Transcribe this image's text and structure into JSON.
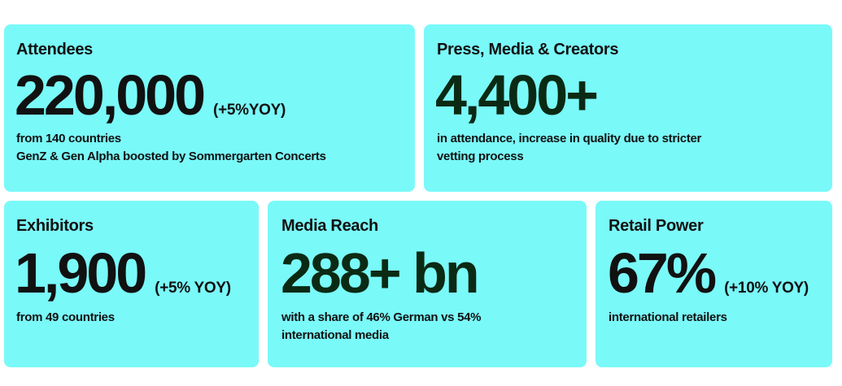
{
  "cards": {
    "attendees": {
      "title": "Attendees",
      "value": "220,000",
      "change": "(+5%YOY)",
      "desc_line1": "from 140 countries",
      "desc_line2": "GenZ & Gen Alpha boosted by Sommergarten Concerts"
    },
    "press": {
      "title": "Press, Media & Creators",
      "value": "4,400+",
      "desc_line1": "in attendance, increase in quality due to stricter",
      "desc_line2": "vetting process"
    },
    "exhibitors": {
      "title": "Exhibitors",
      "value": "1,900",
      "change": "(+5% YOY)",
      "desc_line1": "from 49 countries"
    },
    "media_reach": {
      "title": "Media Reach",
      "value": "288+ bn",
      "desc_line1": "with a share of 46% German vs 54%",
      "desc_line2": "international media"
    },
    "retail": {
      "title": "Retail Power",
      "value": "67%",
      "change": "(+10% YOY)",
      "desc_line1": "international retailers"
    }
  },
  "colors": {
    "card_background": "#7af9f9",
    "primary_text": "#111111",
    "accent_value": "#0b2a14"
  }
}
